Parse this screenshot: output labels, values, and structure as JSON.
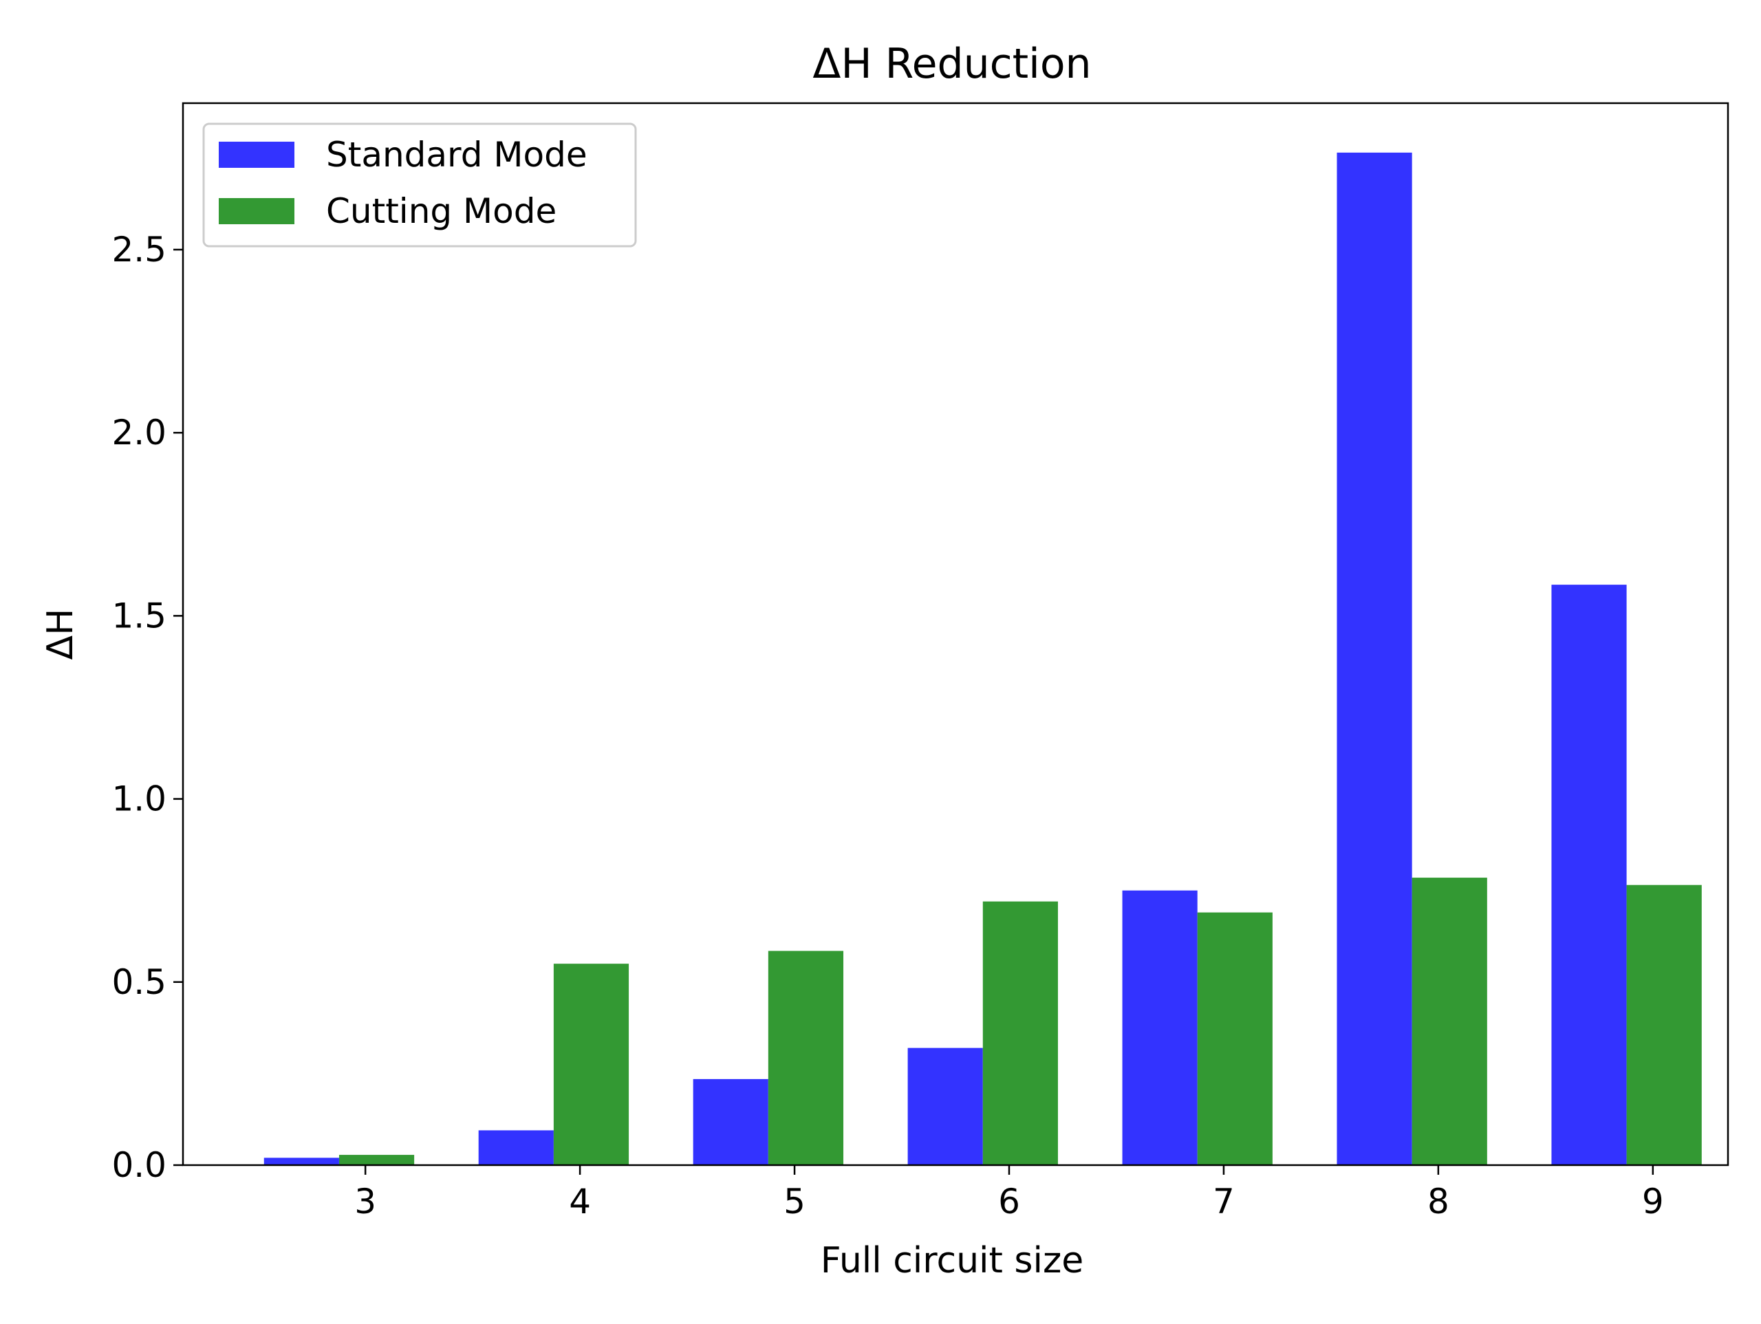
{
  "chart_data": {
    "type": "bar",
    "title": "ΔH Reduction",
    "xlabel": "Full circuit size",
    "ylabel": "ΔH",
    "categories": [
      "3",
      "4",
      "5",
      "6",
      "7",
      "8",
      "9"
    ],
    "series": [
      {
        "name": "Standard Mode",
        "color": "#3333ff",
        "values": [
          0.02,
          0.095,
          0.235,
          0.32,
          0.75,
          2.765,
          1.585
        ]
      },
      {
        "name": "Cutting Mode",
        "color": "#339933",
        "values": [
          0.028,
          0.55,
          0.585,
          0.72,
          0.69,
          0.785,
          0.765
        ]
      }
    ],
    "ylim": [
      0,
      2.9
    ],
    "yticks": [
      "0.0",
      "0.5",
      "1.0",
      "1.5",
      "2.0",
      "2.5"
    ],
    "grid": false,
    "legend_position": "top-left"
  }
}
